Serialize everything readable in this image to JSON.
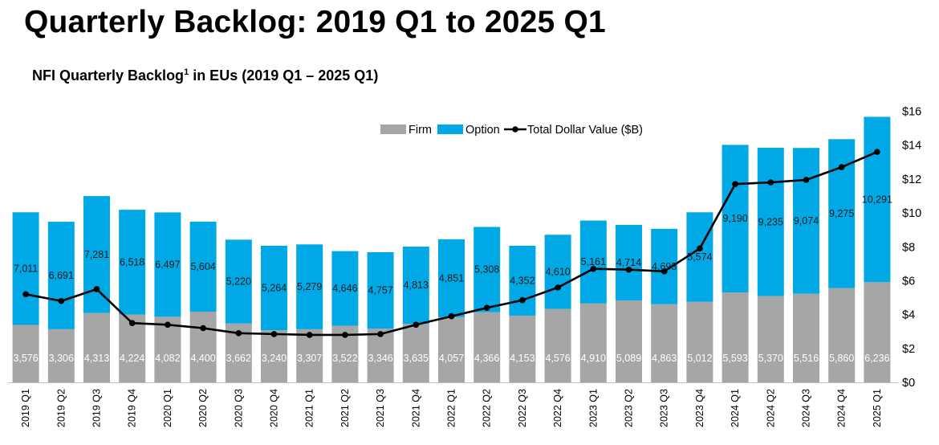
{
  "header": {
    "title": "Quarterly Backlog: 2019 Q1 to 2025 Q1",
    "subtitle_main": "NFI Quarterly Backlog",
    "subtitle_sup": "1",
    "subtitle_rest": " in EUs (2019 Q1 – 2025 Q1)"
  },
  "colors": {
    "firm": "#a6a6a6",
    "option": "#00a9e6",
    "line": "#000000"
  },
  "chart_data": {
    "type": "bar",
    "stacked": true,
    "title": "NFI Quarterly Backlog in EUs (2019 Q1 – 2025 Q1)",
    "categories": [
      "2019 Q1",
      "2019 Q2",
      "2019 Q3",
      "2019 Q4",
      "2020 Q1",
      "2020 Q2",
      "2020 Q3",
      "2020 Q4",
      "2021 Q1",
      "2021 Q2",
      "2021 Q3",
      "2021 Q4",
      "2022 Q1",
      "2022 Q2",
      "2022 Q3",
      "2022 Q4",
      "2023 Q1",
      "2023 Q2",
      "2023 Q3",
      "2023 Q4",
      "2024 Q1",
      "2024 Q2",
      "2024 Q3",
      "2024 Q4",
      "2025 Q1"
    ],
    "series": [
      {
        "name": "Firm",
        "kind": "bar",
        "values": [
          3576,
          3306,
          4313,
          4224,
          4082,
          4400,
          3662,
          3240,
          3307,
          3522,
          3346,
          3635,
          4057,
          4366,
          4153,
          4576,
          4910,
          5089,
          4863,
          5012,
          5593,
          5370,
          5516,
          5860,
          6236
        ],
        "labels": [
          "3,576",
          "3,306",
          "4,313",
          "4,224",
          "4,082",
          "4,400",
          "3,662",
          "3,240",
          "3,307",
          "3,522",
          "3,346",
          "3,635",
          "4,057",
          "4,366",
          "4,153",
          "4,576",
          "4,910",
          "5,089",
          "4,863",
          "5,012",
          "5,593",
          "5,370",
          "5,516",
          "5,860",
          "6,236"
        ]
      },
      {
        "name": "Option",
        "kind": "bar",
        "values": [
          7011,
          6691,
          7281,
          6518,
          6497,
          5604,
          5220,
          5264,
          5279,
          4646,
          4757,
          4813,
          4851,
          5308,
          4352,
          4610,
          5161,
          4714,
          4693,
          5574,
          9190,
          9235,
          9074,
          9275,
          10291
        ],
        "labels": [
          "7,011",
          "6,691",
          "7,281",
          "6,518",
          "6,497",
          "5,604",
          "5,220",
          "5,264",
          "5,279",
          "4,646",
          "4,757",
          "4,813",
          "4,851",
          "5,308",
          "4,352",
          "4,610",
          "5,161",
          "4,714",
          "4,693",
          "5,574",
          "9,190",
          "9,235",
          "9,074",
          "9,275",
          "10,291"
        ]
      },
      {
        "name": "Total Dollar Value ($B)",
        "kind": "line",
        "axis": "right",
        "values": [
          5.2,
          4.8,
          5.5,
          3.5,
          3.4,
          3.2,
          2.9,
          2.85,
          2.8,
          2.8,
          2.85,
          3.4,
          3.9,
          4.4,
          4.85,
          5.6,
          6.7,
          6.65,
          6.55,
          7.9,
          11.7,
          11.8,
          11.95,
          12.7,
          13.6
        ]
      }
    ],
    "left_axis": {
      "ylim": [
        0,
        16875
      ],
      "shown": false
    },
    "right_axis": {
      "ylim": [
        0,
        16
      ],
      "ticks": [
        0,
        2,
        4,
        6,
        8,
        10,
        12,
        14,
        16
      ],
      "tick_labels": [
        "$0",
        "$2",
        "$4",
        "$6",
        "$8",
        "$10",
        "$12",
        "$14",
        "$16"
      ]
    },
    "legend": {
      "position": "top-right",
      "entries": [
        "Firm",
        "Option",
        "Total Dollar Value ($B)"
      ]
    },
    "grid": false
  }
}
